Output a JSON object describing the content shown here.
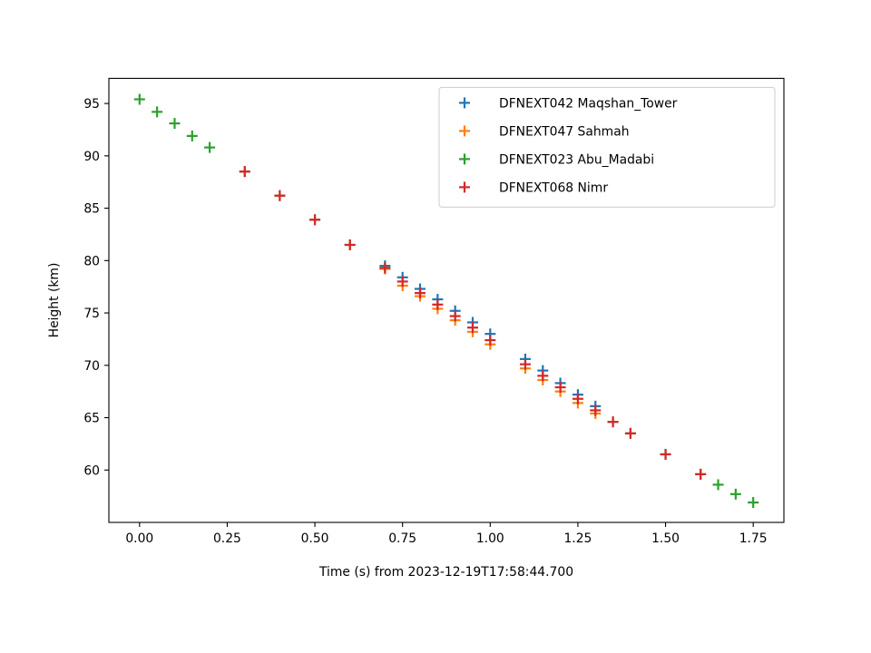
{
  "chart_data": {
    "type": "scatter",
    "title": "",
    "xlabel": "Time (s) from 2023-12-19T17:58:44.700",
    "ylabel": "Height (km)",
    "xlim": [
      -0.0875,
      1.8375
    ],
    "ylim": [
      55.0,
      97.4
    ],
    "x_ticks": [
      0.0,
      0.25,
      0.5,
      0.75,
      1.0,
      1.25,
      1.5,
      1.75
    ],
    "x_tick_labels": [
      "0.00",
      "0.25",
      "0.50",
      "0.75",
      "1.00",
      "1.25",
      "1.50",
      "1.75"
    ],
    "y_ticks": [
      60,
      65,
      70,
      75,
      80,
      85,
      90,
      95
    ],
    "y_tick_labels": [
      "60",
      "65",
      "70",
      "75",
      "80",
      "85",
      "90",
      "95"
    ],
    "grid": false,
    "legend_position": "top-right",
    "marker": "plus",
    "series": [
      {
        "name": "DFNEXT042 Maqshan_Tower",
        "color": "#1f77b4",
        "x": [
          0.7,
          0.75,
          0.8,
          0.85,
          0.9,
          0.95,
          1.0,
          1.1,
          1.15,
          1.2,
          1.25,
          1.3
        ],
        "y": [
          79.5,
          78.4,
          77.3,
          76.3,
          75.2,
          74.1,
          73.0,
          70.6,
          69.5,
          68.3,
          67.2,
          66.1
        ]
      },
      {
        "name": "DFNEXT047 Sahmah",
        "color": "#ff7f0e",
        "x": [
          0.7,
          0.75,
          0.8,
          0.85,
          0.9,
          0.95,
          1.0,
          1.1,
          1.15,
          1.2,
          1.25,
          1.3
        ],
        "y": [
          79.2,
          77.6,
          76.6,
          75.4,
          74.3,
          73.2,
          72.0,
          69.7,
          68.6,
          67.5,
          66.4,
          65.4
        ]
      },
      {
        "name": "DFNEXT023 Abu_Madabi",
        "color": "#2ca02c",
        "x": [
          0.0,
          0.05,
          0.1,
          0.15,
          0.2,
          0.3,
          0.4,
          0.5,
          0.6,
          0.7,
          1.35,
          1.4,
          1.5,
          1.6,
          1.65,
          1.7,
          1.75
        ],
        "y": [
          95.4,
          94.2,
          93.1,
          91.9,
          90.8,
          88.5,
          86.2,
          83.9,
          81.5,
          79.3,
          64.6,
          63.5,
          61.5,
          59.6,
          58.6,
          57.7,
          56.9
        ]
      },
      {
        "name": "DFNEXT068 Nimr",
        "color": "#d62728",
        "x": [
          0.3,
          0.4,
          0.5,
          0.6,
          0.7,
          0.75,
          0.8,
          0.85,
          0.9,
          0.95,
          1.0,
          1.1,
          1.15,
          1.2,
          1.25,
          1.3,
          1.35,
          1.4,
          1.5,
          1.6
        ],
        "y": [
          88.5,
          86.2,
          83.9,
          81.5,
          79.3,
          78.0,
          76.9,
          75.8,
          74.7,
          73.6,
          72.4,
          70.1,
          69.0,
          67.9,
          66.8,
          65.7,
          64.6,
          63.5,
          61.5,
          59.6
        ]
      }
    ]
  }
}
